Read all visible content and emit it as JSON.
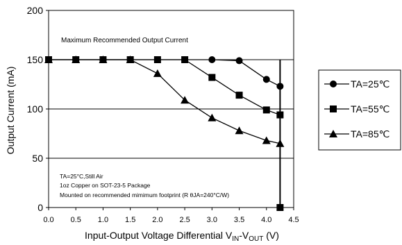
{
  "chart_data": {
    "type": "line",
    "title": "",
    "xlabel_main": "Input-Output Voltage Differential V",
    "xlabel_sub1": "IN",
    "xlabel_mid": "-V",
    "xlabel_sub2": "OUT",
    "xlabel_unit": " (V)",
    "ylabel": "Output Current (mA)",
    "xlim": [
      0,
      4.5
    ],
    "ylim": [
      0,
      200
    ],
    "x_ticks": [
      0.0,
      0.5,
      1.0,
      1.5,
      2.0,
      2.5,
      3.0,
      3.5,
      4.0,
      4.5
    ],
    "x_tick_labels": [
      "0.0",
      "0.5",
      "1.0",
      "1.5",
      "2.0",
      "2.5",
      "3.0",
      "3.5",
      "4.0",
      "4.5"
    ],
    "y_ticks": [
      0,
      50,
      100,
      150,
      200
    ],
    "y_tick_labels": [
      "0",
      "50",
      "100",
      "150",
      "200"
    ],
    "grid": true,
    "legend_placement": "right-outside",
    "annotation": "Maximum Recommended Output Current",
    "notes": [
      "TA=25°C,Still Air",
      "1oz Copper on SOT-23-5 Package",
      "Mounted on recommended mimimum footprint (R θJA=240°C/W)"
    ],
    "series": [
      {
        "name": "TA=25℃",
        "marker": "circle",
        "x": [
          0,
          0.5,
          1.0,
          1.5,
          2.0,
          2.5,
          3.0,
          3.5,
          4.0,
          4.25
        ],
        "y": [
          150,
          150,
          150,
          150,
          150,
          150,
          150,
          149,
          130,
          123
        ]
      },
      {
        "name": "TA=55℃",
        "marker": "square",
        "x": [
          0,
          0.5,
          1.0,
          1.5,
          2.0,
          2.5,
          3.0,
          3.5,
          4.0,
          4.25,
          4.25
        ],
        "y": [
          150,
          150,
          150,
          150,
          150,
          150,
          132,
          114,
          99,
          94,
          0
        ]
      },
      {
        "name": "TA=85℃",
        "marker": "triangle",
        "x": [
          0,
          0.5,
          1.0,
          1.5,
          2.0,
          2.5,
          3.0,
          3.5,
          4.0,
          4.25
        ],
        "y": [
          150,
          150,
          150,
          150,
          136,
          109,
          91,
          78,
          68,
          65
        ]
      }
    ],
    "limit_line": {
      "x": [
        4.25,
        4.25
      ],
      "y": [
        150,
        0
      ]
    }
  }
}
